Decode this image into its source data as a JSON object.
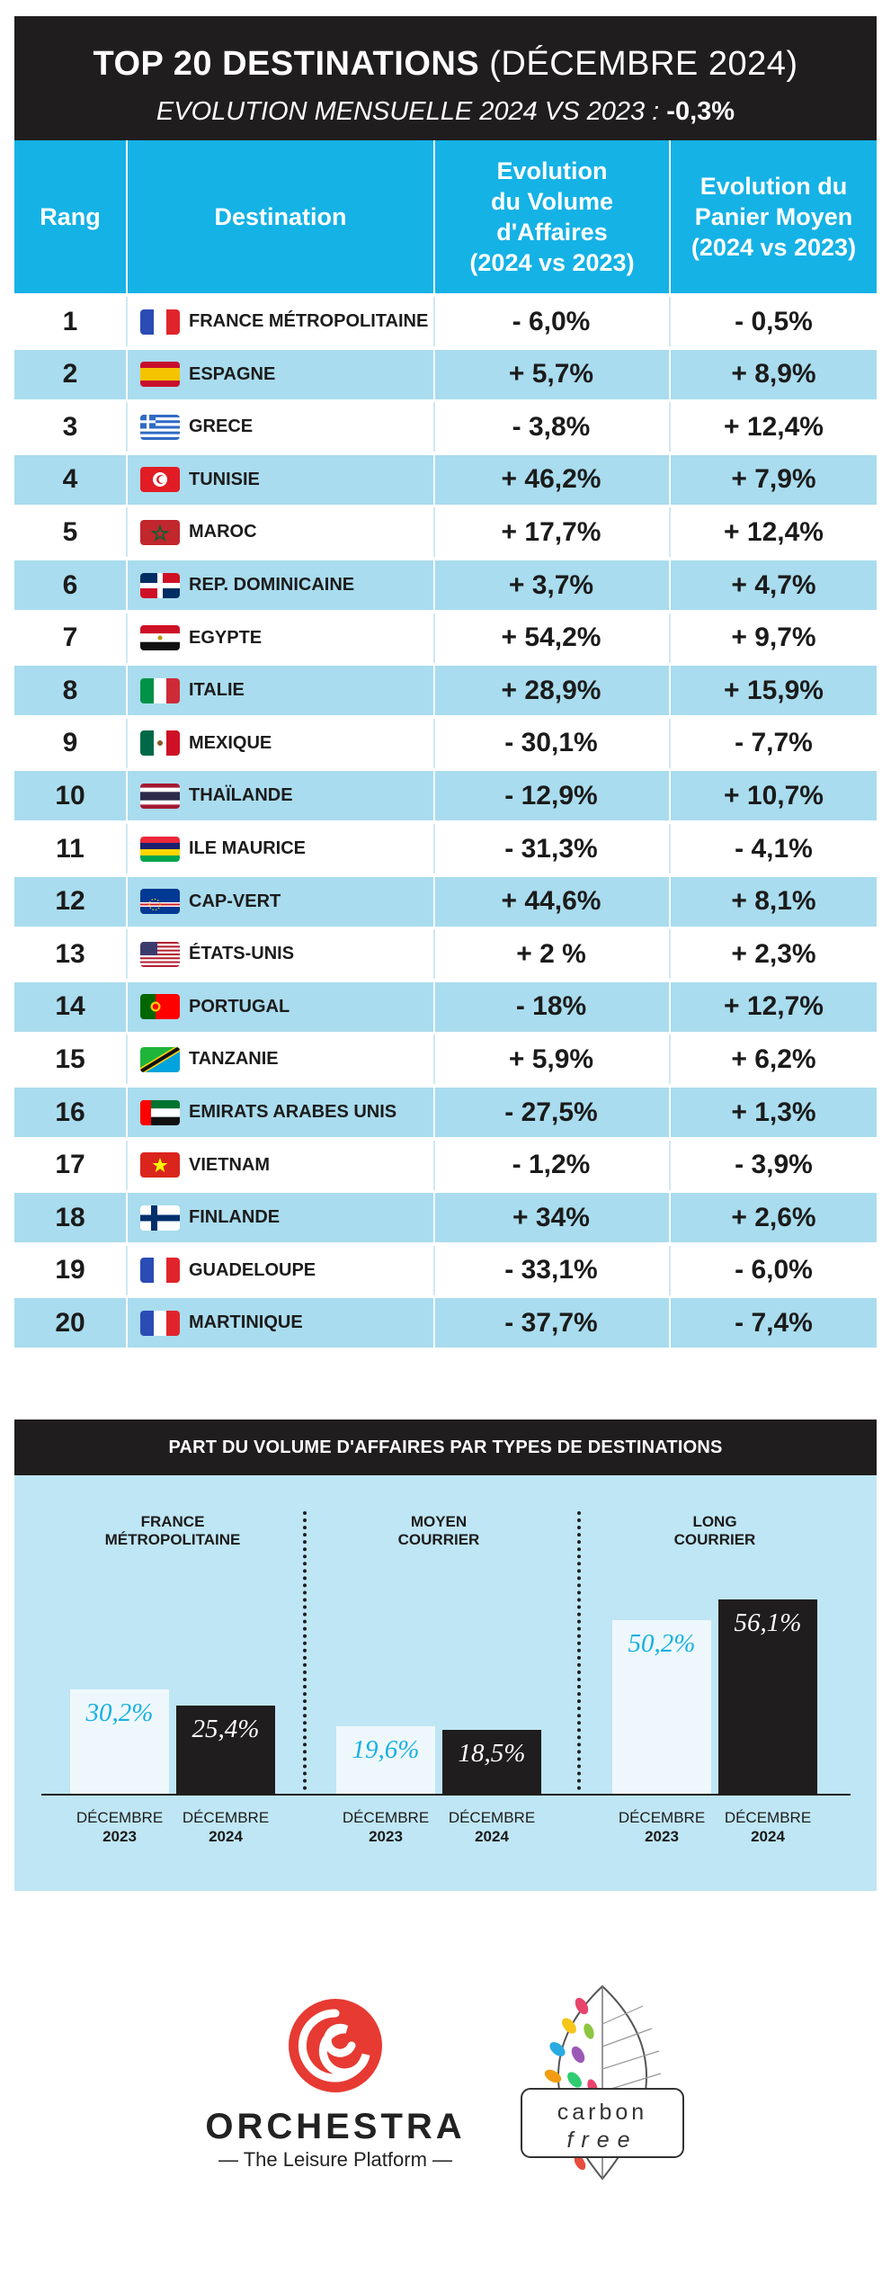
{
  "header": {
    "title_bold": "TOP 20 DESTINATIONS",
    "title_rest": "(DÉCEMBRE 2024)",
    "subtitle": "EVOLUTION MENSUELLE 2024 VS 2023 :",
    "subtitle_value": "-0,3%"
  },
  "table": {
    "col_rank": "Rang",
    "col_destination": "Destination",
    "col_volume": [
      "Evolution",
      "du Volume",
      "d'Affaires",
      "(2024 vs 2023)"
    ],
    "col_panier": [
      "Evolution du",
      "Panier Moyen",
      "(2024 vs 2023)"
    ],
    "rows": [
      {
        "rank": "1",
        "destination": "FRANCE MÉTROPOLITAINE",
        "flag": "france-flag-icon",
        "volume": "- 6,0%",
        "panier": "- 0,5%"
      },
      {
        "rank": "2",
        "destination": "ESPAGNE",
        "flag": "spain-flag-icon",
        "volume": "+ 5,7%",
        "panier": "+ 8,9%"
      },
      {
        "rank": "3",
        "destination": "GRECE",
        "flag": "greece-flag-icon",
        "volume": "- 3,8%",
        "panier": "+ 12,4%"
      },
      {
        "rank": "4",
        "destination": "TUNISIE",
        "flag": "tunisia-flag-icon",
        "volume": "+ 46,2%",
        "panier": "+ 7,9%"
      },
      {
        "rank": "5",
        "destination": "MAROC",
        "flag": "morocco-flag-icon",
        "volume": "+ 17,7%",
        "panier": "+ 12,4%"
      },
      {
        "rank": "6",
        "destination": "REP. DOMINICAINE",
        "flag": "dominican-republic-flag-icon",
        "volume": "+ 3,7%",
        "panier": "+ 4,7%"
      },
      {
        "rank": "7",
        "destination": "EGYPTE",
        "flag": "egypt-flag-icon",
        "volume": "+ 54,2%",
        "panier": "+ 9,7%"
      },
      {
        "rank": "8",
        "destination": "ITALIE",
        "flag": "italy-flag-icon",
        "volume": "+ 28,9%",
        "panier": "+ 15,9%"
      },
      {
        "rank": "9",
        "destination": "MEXIQUE",
        "flag": "mexico-flag-icon",
        "volume": "- 30,1%",
        "panier": "- 7,7%"
      },
      {
        "rank": "10",
        "destination": "THAÏLANDE",
        "flag": "thailand-flag-icon",
        "volume": "- 12,9%",
        "panier": "+ 10,7%"
      },
      {
        "rank": "11",
        "destination": "ILE MAURICE",
        "flag": "mauritius-flag-icon",
        "volume": "- 31,3%",
        "panier": "- 4,1%"
      },
      {
        "rank": "12",
        "destination": "CAP-VERT",
        "flag": "cape-verde-flag-icon",
        "volume": "+ 44,6%",
        "panier": "+ 8,1%"
      },
      {
        "rank": "13",
        "destination": "ÉTATS-UNIS",
        "flag": "usa-flag-icon",
        "volume": "+ 2 %",
        "panier": "+ 2,3%"
      },
      {
        "rank": "14",
        "destination": "PORTUGAL",
        "flag": "portugal-flag-icon",
        "volume": "- 18%",
        "panier": "+ 12,7%"
      },
      {
        "rank": "15",
        "destination": "TANZANIE",
        "flag": "tanzania-flag-icon",
        "volume": "+ 5,9%",
        "panier": "+ 6,2%"
      },
      {
        "rank": "16",
        "destination": "EMIRATS ARABES UNIS",
        "flag": "uae-flag-icon",
        "volume": "- 27,5%",
        "panier": "+ 1,3%"
      },
      {
        "rank": "17",
        "destination": "VIETNAM",
        "flag": "vietnam-flag-icon",
        "volume": "- 1,2%",
        "panier": "- 3,9%"
      },
      {
        "rank": "18",
        "destination": "FINLANDE",
        "flag": "finland-flag-icon",
        "volume": "+ 34%",
        "panier": "+ 2,6%"
      },
      {
        "rank": "19",
        "destination": "GUADELOUPE",
        "flag": "france-flag-icon",
        "volume": "- 33,1%",
        "panier": "- 6,0%"
      },
      {
        "rank": "20",
        "destination": "MARTINIQUE",
        "flag": "france-flag-icon",
        "volume": "- 37,7%",
        "panier": "- 7,4%"
      }
    ]
  },
  "chart_data": {
    "type": "bar",
    "title": "PART DU VOLUME D'AFFAIRES PAR TYPES DE DESTINATIONS",
    "groups": [
      {
        "name": [
          "FRANCE",
          "MÉTROPOLITAINE"
        ],
        "values": [
          30.2,
          25.4
        ],
        "labels": [
          "30,2%",
          "25,4%"
        ]
      },
      {
        "name": [
          "MOYEN",
          "COURRIER"
        ],
        "values": [
          19.6,
          18.5
        ],
        "labels": [
          "19,6%",
          "18,5%"
        ]
      },
      {
        "name": [
          "LONG",
          "COURRIER"
        ],
        "values": [
          50.2,
          56.1
        ],
        "labels": [
          "50,2%",
          "56,1%"
        ]
      }
    ],
    "series": [
      {
        "month": "DÉCEMBRE",
        "year": "2023",
        "color": "#eef8fc"
      },
      {
        "month": "DÉCEMBRE",
        "year": "2024",
        "color": "#1f1d1d"
      }
    ],
    "ylim": [
      0,
      60
    ],
    "grid": false
  },
  "footer": {
    "orchestra_name": "ORCHESTRA",
    "orchestra_tagline": "— The Leisure Platform —",
    "carbon_word1": "carbon",
    "carbon_word2": "free"
  },
  "colors": {
    "header_blue": "#15b2e6",
    "row_blue": "#a9dcee",
    "dark": "#1f1d1d",
    "chart_bg": "#bfe6f4",
    "orchestra_red": "#e63a32"
  }
}
